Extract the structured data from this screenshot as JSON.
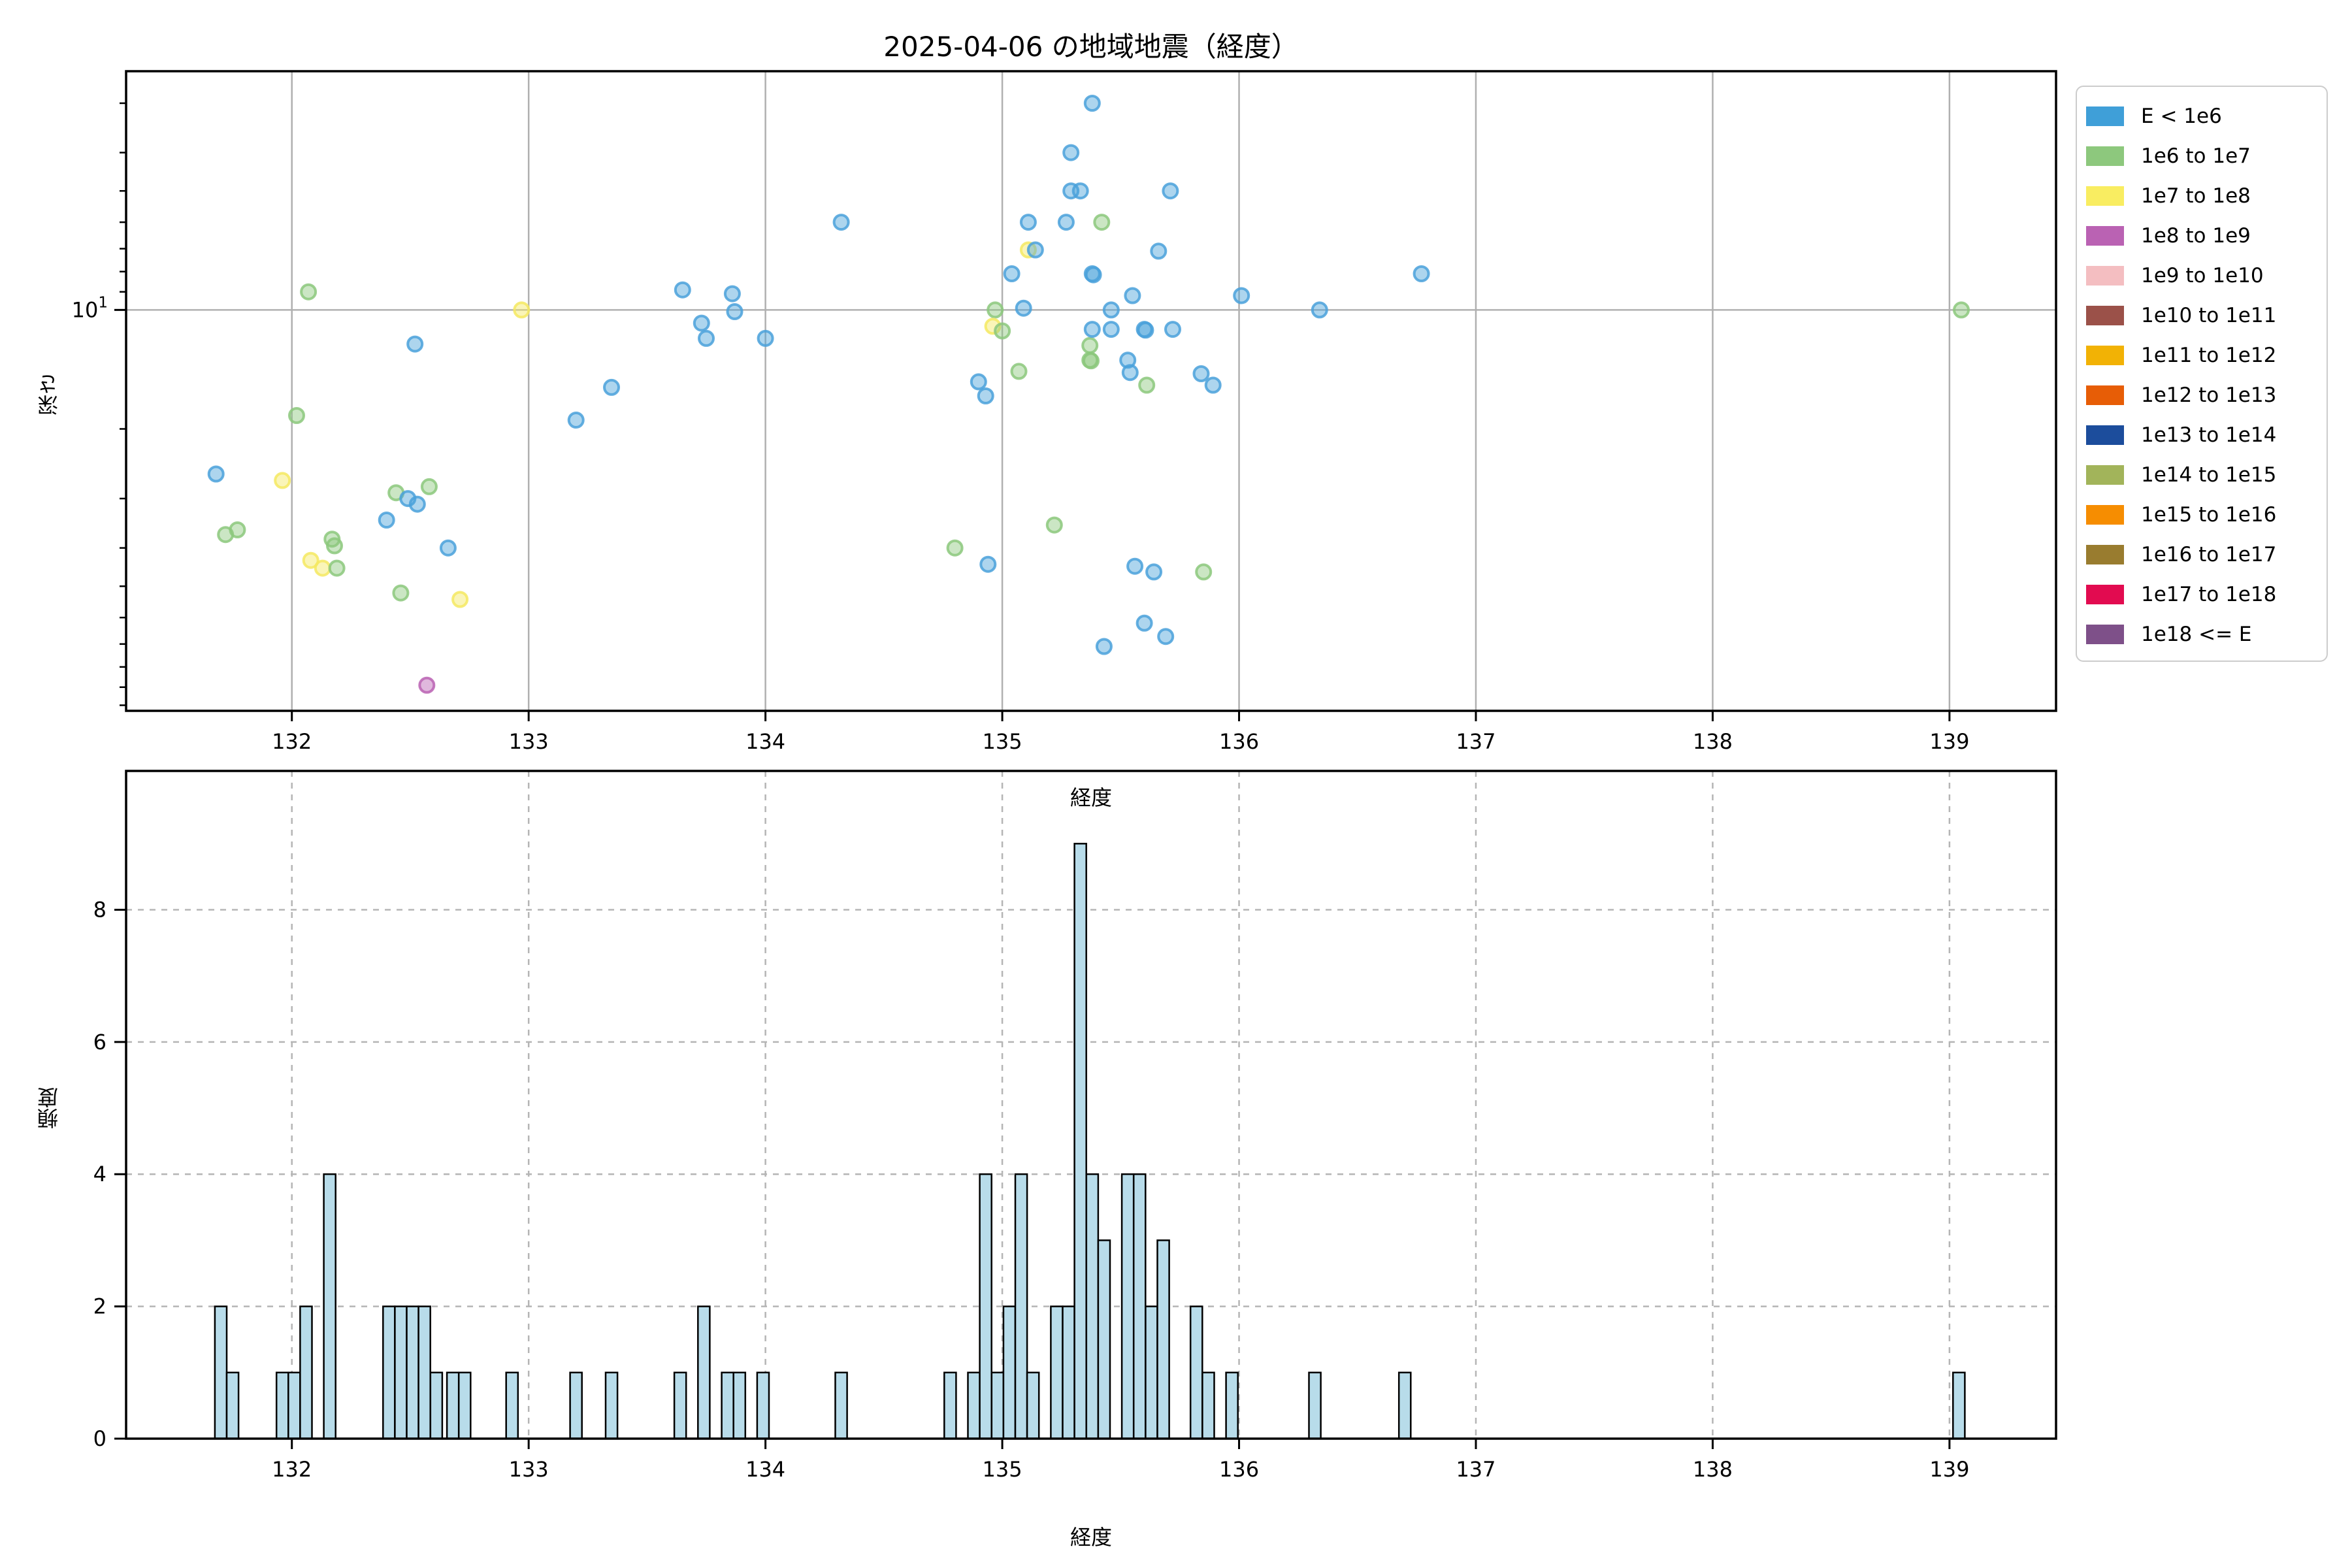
{
  "title": "2025-04-06 の地域地震（経度）",
  "legend": {
    "entries": [
      {
        "label": "E < 1e6",
        "color": "#3f9fd8"
      },
      {
        "label": "1e6 to 1e7",
        "color": "#8dc87d"
      },
      {
        "label": "1e7 to 1e8",
        "color": "#f9ed61"
      },
      {
        "label": "1e8 to 1e9",
        "color": "#ba62b3"
      },
      {
        "label": "1e9 to 1e10",
        "color": "#f4bec1"
      },
      {
        "label": "1e10 to 1e11",
        "color": "#9b5149"
      },
      {
        "label": "1e11 to 1e12",
        "color": "#f2b205"
      },
      {
        "label": "1e12 to 1e13",
        "color": "#e75d06"
      },
      {
        "label": "1e13 to 1e14",
        "color": "#1c4d9c"
      },
      {
        "label": "1e14 to 1e15",
        "color": "#a2b45a"
      },
      {
        "label": "1e15 to 1e16",
        "color": "#f68d01"
      },
      {
        "label": "1e16 to 1e17",
        "color": "#997c2f"
      },
      {
        "label": "1e17 to 1e18",
        "color": "#e20b50"
      },
      {
        "label": "1e18 <= E",
        "color": "#7e5089"
      }
    ]
  },
  "chart_data": [
    {
      "type": "scatter",
      "title": "2025-04-06 の地域地震（経度）",
      "xlabel": "経度",
      "ylabel": "深さ",
      "xlim": [
        131.3,
        139.45
      ],
      "x_ticks": [
        132,
        133,
        134,
        135,
        136,
        137,
        138,
        139
      ],
      "y_axis": {
        "scale": "log",
        "inverted": true,
        "lim_top_depth": 2.49,
        "lim_bottom_depth": 103.3,
        "major_tick": 10,
        "major_label_base": "10",
        "major_label_exp": "1",
        "minor_ticks": [
          3,
          4,
          5,
          6,
          7,
          8,
          9,
          20,
          30,
          40,
          50,
          60,
          70,
          80,
          90,
          100
        ]
      },
      "grid": "solid",
      "marker_colors": [
        "#4aa1da",
        "#8cc87d",
        "#f5e962",
        "#ba62b3"
      ],
      "points_format": [
        "longitude",
        "depth_km",
        "legend_entry_index"
      ],
      "points": [
        [
          131.68,
          26,
          0
        ],
        [
          131.72,
          37,
          1
        ],
        [
          131.77,
          36,
          1
        ],
        [
          131.96,
          27,
          2
        ],
        [
          132.02,
          18.5,
          1
        ],
        [
          132.07,
          9.0,
          1
        ],
        [
          132.08,
          43,
          2
        ],
        [
          132.13,
          45,
          2
        ],
        [
          132.17,
          38,
          1
        ],
        [
          132.18,
          39.5,
          1
        ],
        [
          132.19,
          45,
          1
        ],
        [
          132.4,
          34,
          0
        ],
        [
          132.44,
          29,
          1
        ],
        [
          132.46,
          52,
          1
        ],
        [
          132.49,
          30,
          0
        ],
        [
          132.52,
          12.2,
          0
        ],
        [
          132.53,
          31,
          0
        ],
        [
          132.57,
          89,
          3
        ],
        [
          132.58,
          28,
          1
        ],
        [
          132.66,
          40,
          0
        ],
        [
          132.71,
          54,
          2
        ],
        [
          132.97,
          10.0,
          2
        ],
        [
          133.2,
          19,
          0
        ],
        [
          133.35,
          15.7,
          0
        ],
        [
          133.65,
          8.9,
          0
        ],
        [
          133.73,
          10.8,
          0
        ],
        [
          133.75,
          11.8,
          0
        ],
        [
          133.86,
          9.1,
          0
        ],
        [
          133.87,
          10.1,
          0
        ],
        [
          134.0,
          11.8,
          0
        ],
        [
          134.32,
          6.0,
          0
        ],
        [
          134.8,
          40,
          1
        ],
        [
          134.9,
          15.2,
          0
        ],
        [
          134.93,
          16.5,
          0
        ],
        [
          134.94,
          44,
          0
        ],
        [
          134.97,
          10.0,
          1
        ],
        [
          134.96,
          11.0,
          2
        ],
        [
          135.0,
          11.3,
          1
        ],
        [
          135.04,
          8.1,
          0
        ],
        [
          135.07,
          14.3,
          1
        ],
        [
          135.09,
          9.9,
          0
        ],
        [
          135.11,
          6.0,
          0
        ],
        [
          135.11,
          7.05,
          2
        ],
        [
          135.14,
          7.05,
          0
        ],
        [
          135.22,
          35,
          1
        ],
        [
          135.27,
          6.0,
          0
        ],
        [
          135.29,
          4.0,
          0
        ],
        [
          135.29,
          5.0,
          0
        ],
        [
          135.33,
          5.0,
          0
        ],
        [
          135.38,
          3.0,
          0
        ],
        [
          135.38,
          8.1,
          0
        ],
        [
          135.385,
          8.15,
          0
        ],
        [
          135.37,
          12.3,
          1
        ],
        [
          135.37,
          13.4,
          1
        ],
        [
          135.375,
          13.45,
          1
        ],
        [
          135.38,
          11.2,
          0
        ],
        [
          135.42,
          6.0,
          1
        ],
        [
          135.43,
          71,
          0
        ],
        [
          135.46,
          10.0,
          0
        ],
        [
          135.46,
          11.2,
          0
        ],
        [
          135.53,
          13.4,
          0
        ],
        [
          135.54,
          14.4,
          0
        ],
        [
          135.55,
          9.2,
          0
        ],
        [
          135.56,
          44.5,
          0
        ],
        [
          135.6,
          11.2,
          0
        ],
        [
          135.605,
          11.25,
          0
        ],
        [
          135.6,
          62,
          0
        ],
        [
          135.61,
          15.5,
          1
        ],
        [
          135.64,
          46,
          0
        ],
        [
          135.66,
          7.1,
          0
        ],
        [
          135.69,
          67,
          0
        ],
        [
          135.71,
          5.0,
          0
        ],
        [
          135.72,
          11.2,
          0
        ],
        [
          135.84,
          14.5,
          0
        ],
        [
          135.85,
          46,
          1
        ],
        [
          135.89,
          15.5,
          0
        ],
        [
          136.01,
          9.2,
          0
        ],
        [
          136.34,
          10.0,
          0
        ],
        [
          136.77,
          8.1,
          0
        ],
        [
          139.05,
          10.0,
          1
        ]
      ]
    },
    {
      "type": "bar",
      "xlabel": "経度",
      "ylabel": "頻度",
      "xlim": [
        131.3,
        139.45
      ],
      "x_ticks": [
        132,
        133,
        134,
        135,
        136,
        137,
        138,
        139
      ],
      "ylim": [
        0,
        10.1
      ],
      "y_ticks": [
        0,
        2,
        4,
        6,
        8
      ],
      "grid": "dashed",
      "bar_width": 0.05,
      "bar_color": "#b8dcea",
      "bar_edge": "#000000",
      "bars_format": [
        "longitude_bin_center",
        "count"
      ],
      "bars": [
        [
          131.7,
          2
        ],
        [
          131.75,
          1
        ],
        [
          131.96,
          1
        ],
        [
          132.01,
          1
        ],
        [
          132.06,
          2
        ],
        [
          132.16,
          4
        ],
        [
          132.41,
          2
        ],
        [
          132.46,
          2
        ],
        [
          132.51,
          2
        ],
        [
          132.56,
          2
        ],
        [
          132.61,
          1
        ],
        [
          132.68,
          1
        ],
        [
          132.73,
          1
        ],
        [
          132.93,
          1
        ],
        [
          133.2,
          1
        ],
        [
          133.35,
          1
        ],
        [
          133.64,
          1
        ],
        [
          133.74,
          2
        ],
        [
          133.84,
          1
        ],
        [
          133.89,
          1
        ],
        [
          133.99,
          1
        ],
        [
          134.32,
          1
        ],
        [
          134.78,
          1
        ],
        [
          134.88,
          1
        ],
        [
          134.93,
          4
        ],
        [
          134.98,
          1
        ],
        [
          135.03,
          2
        ],
        [
          135.08,
          4
        ],
        [
          135.13,
          1
        ],
        [
          135.23,
          2
        ],
        [
          135.28,
          2
        ],
        [
          135.33,
          9
        ],
        [
          135.38,
          4
        ],
        [
          135.43,
          3
        ],
        [
          135.53,
          4
        ],
        [
          135.58,
          4
        ],
        [
          135.63,
          2
        ],
        [
          135.68,
          3
        ],
        [
          135.82,
          2
        ],
        [
          135.87,
          1
        ],
        [
          135.97,
          1
        ],
        [
          136.32,
          1
        ],
        [
          136.7,
          1
        ],
        [
          139.04,
          1
        ]
      ]
    }
  ]
}
